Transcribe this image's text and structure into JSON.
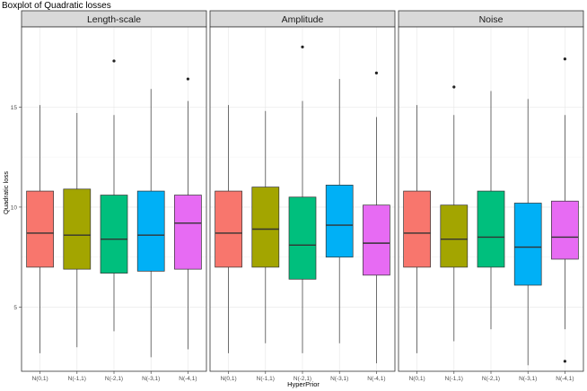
{
  "chart_data": {
    "type": "boxplot",
    "title": "Boxplot of Quadratic losses",
    "xlabel": "HyperPrior",
    "ylabel": "Quadratic loss",
    "ylim": [
      1.8,
      19.0
    ],
    "yticks": [
      5,
      10,
      15
    ],
    "grid": true,
    "legend": "none",
    "categories": [
      "N(0,1)",
      "N(-1,1)",
      "N(-2,1)",
      "N(-3,1)",
      "N(-4,1)"
    ],
    "colors": [
      "#F8766D",
      "#A3A500",
      "#00BF7D",
      "#00B0F6",
      "#E76BF3"
    ],
    "facets": [
      {
        "name": "Length-scale",
        "boxes": [
          {
            "category": "N(0,1)",
            "whisker_low": 2.7,
            "q1": 7.0,
            "median": 8.7,
            "q3": 10.8,
            "whisker_high": 15.1,
            "outliers": []
          },
          {
            "category": "N(-1,1)",
            "whisker_low": 3.0,
            "q1": 6.9,
            "median": 8.6,
            "q3": 10.9,
            "whisker_high": 14.7,
            "outliers": []
          },
          {
            "category": "N(-2,1)",
            "whisker_low": 3.8,
            "q1": 6.7,
            "median": 8.4,
            "q3": 10.6,
            "whisker_high": 14.6,
            "outliers": [
              17.3
            ]
          },
          {
            "category": "N(-3,1)",
            "whisker_low": 2.5,
            "q1": 6.8,
            "median": 8.6,
            "q3": 10.8,
            "whisker_high": 15.9,
            "outliers": []
          },
          {
            "category": "N(-4,1)",
            "whisker_low": 2.9,
            "q1": 6.9,
            "median": 9.2,
            "q3": 10.6,
            "whisker_high": 15.3,
            "outliers": [
              16.4
            ]
          }
        ]
      },
      {
        "name": "Amplitude",
        "boxes": [
          {
            "category": "N(0,1)",
            "whisker_low": 2.7,
            "q1": 7.0,
            "median": 8.7,
            "q3": 10.8,
            "whisker_high": 15.1,
            "outliers": []
          },
          {
            "category": "N(-1,1)",
            "whisker_low": 3.2,
            "q1": 7.0,
            "median": 8.9,
            "q3": 11.0,
            "whisker_high": 14.8,
            "outliers": []
          },
          {
            "category": "N(-2,1)",
            "whisker_low": 2.7,
            "q1": 6.4,
            "median": 8.1,
            "q3": 10.5,
            "whisker_high": 15.3,
            "outliers": [
              18.0
            ]
          },
          {
            "category": "N(-3,1)",
            "whisker_low": 3.2,
            "q1": 7.5,
            "median": 9.1,
            "q3": 11.1,
            "whisker_high": 16.4,
            "outliers": []
          },
          {
            "category": "N(-4,1)",
            "whisker_low": 2.2,
            "q1": 6.6,
            "median": 8.2,
            "q3": 10.1,
            "whisker_high": 14.5,
            "outliers": [
              16.7
            ]
          }
        ]
      },
      {
        "name": "Noise",
        "boxes": [
          {
            "category": "N(0,1)",
            "whisker_low": 2.7,
            "q1": 7.0,
            "median": 8.7,
            "q3": 10.8,
            "whisker_high": 15.1,
            "outliers": []
          },
          {
            "category": "N(-1,1)",
            "whisker_low": 3.3,
            "q1": 7.0,
            "median": 8.4,
            "q3": 10.1,
            "whisker_high": 14.6,
            "outliers": [
              16.0
            ]
          },
          {
            "category": "N(-2,1)",
            "whisker_low": 3.9,
            "q1": 7.0,
            "median": 8.5,
            "q3": 10.8,
            "whisker_high": 15.8,
            "outliers": []
          },
          {
            "category": "N(-3,1)",
            "whisker_low": 2.1,
            "q1": 6.1,
            "median": 8.0,
            "q3": 10.2,
            "whisker_high": 15.4,
            "outliers": []
          },
          {
            "category": "N(-4,1)",
            "whisker_low": 3.9,
            "q1": 7.4,
            "median": 8.5,
            "q3": 10.3,
            "whisker_high": 14.6,
            "outliers": [
              17.4,
              2.3
            ]
          }
        ]
      }
    ]
  }
}
